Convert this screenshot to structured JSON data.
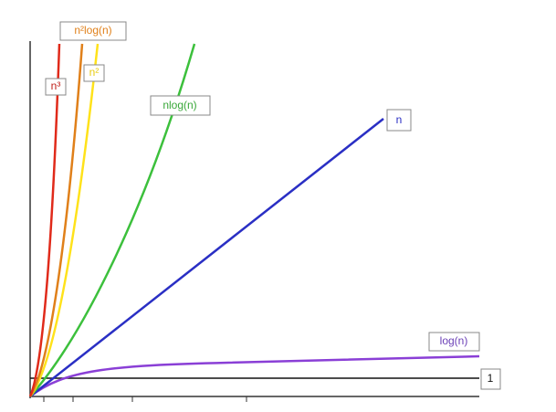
{
  "labels": {
    "cubic": "n³",
    "quadratic_log": "n²log(n)",
    "quadratic": "n²",
    "linearithmic": "nlog(n)",
    "linear": "n",
    "logarithmic": "log(n)",
    "constant": "1"
  }
}
